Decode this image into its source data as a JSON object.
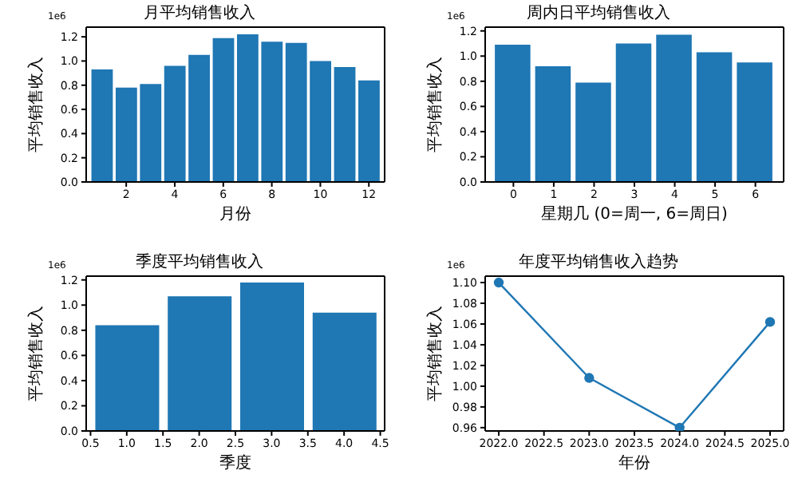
{
  "chart_data": [
    {
      "type": "bar",
      "title": "月平均销售收入",
      "xlabel": "月份",
      "ylabel": "平均销售收入",
      "annotations": [
        "1e6"
      ],
      "color": "#1f77b4",
      "x": [
        1,
        2,
        3,
        4,
        5,
        6,
        7,
        8,
        9,
        10,
        11,
        12
      ],
      "values": [
        0.93,
        0.78,
        0.81,
        0.96,
        1.05,
        1.19,
        1.22,
        1.16,
        1.15,
        1.0,
        0.95,
        0.84
      ],
      "xlim": [
        0.35,
        12.65
      ],
      "xticks": [
        2,
        4,
        6,
        8,
        10,
        12
      ],
      "ylim": [
        0,
        1.28
      ],
      "yticks": [
        {
          "value": 0,
          "label": "0.0"
        },
        0.2,
        0.4,
        0.6,
        0.8,
        {
          "value": 1,
          "label": "1.0"
        },
        1.2
      ]
    },
    {
      "type": "bar",
      "title": "周内日平均销售收入",
      "xlabel": "星期几 (0=周一, 6=周日)",
      "ylabel": "平均销售收入",
      "annotations": [
        "1e6"
      ],
      "color": "#1f77b4",
      "x": [
        0,
        1,
        2,
        3,
        4,
        5,
        6
      ],
      "values": [
        1.09,
        0.92,
        0.79,
        1.1,
        1.17,
        1.03,
        0.95
      ],
      "xlim": [
        -0.7,
        6.7
      ],
      "xticks": [
        0,
        1,
        2,
        3,
        4,
        5,
        6
      ],
      "ylim": [
        0,
        1.23
      ],
      "yticks": [
        {
          "value": 0,
          "label": "0.0"
        },
        0.2,
        0.4,
        0.6,
        0.8,
        {
          "value": 1,
          "label": "1.0"
        },
        1.2
      ]
    },
    {
      "type": "bar",
      "title": "季度平均销售收入",
      "xlabel": "季度",
      "ylabel": "平均销售收入",
      "annotations": [
        "1e6"
      ],
      "color": "#1f77b4",
      "x": [
        1,
        2,
        3,
        4
      ],
      "values": [
        0.84,
        1.07,
        1.18,
        0.94
      ],
      "xlim": [
        0.44,
        4.56
      ],
      "xticks": [
        0.5,
        {
          "value": 1,
          "label": "1.0"
        },
        1.5,
        {
          "value": 2,
          "label": "2.0"
        },
        2.5,
        {
          "value": 3,
          "label": "3.0"
        },
        3.5,
        {
          "value": 4,
          "label": "4.0"
        },
        4.5
      ],
      "ylim": [
        0,
        1.23
      ],
      "yticks": [
        {
          "value": 0,
          "label": "0.0"
        },
        0.2,
        0.4,
        0.6,
        0.8,
        {
          "value": 1,
          "label": "1.0"
        },
        1.2
      ]
    },
    {
      "type": "line",
      "title": "年度平均销售收入趋势",
      "xlabel": "年份",
      "ylabel": "平均销售收入",
      "annotations": [
        "1e6"
      ],
      "color": "#1f77b4",
      "marker": "circle",
      "line_style": "solid",
      "x": [
        2022,
        2023,
        2024,
        2025
      ],
      "values": [
        1.1,
        1.008,
        0.96,
        1.062
      ],
      "xlim": [
        2021.85,
        2025.15
      ],
      "xticks": [
        {
          "value": 2022,
          "label": "2022.0"
        },
        2022.5,
        {
          "value": 2023,
          "label": "2023.0"
        },
        2023.5,
        {
          "value": 2024,
          "label": "2024.0"
        },
        2024.5,
        {
          "value": 2025,
          "label": "2025.0"
        }
      ],
      "ylim": [
        0.9568,
        1.1062
      ],
      "yticks": [
        0.96,
        0.98,
        {
          "value": 1,
          "label": "1.00"
        },
        1.02,
        1.04,
        1.06,
        1.08,
        {
          "value": 1.1,
          "label": "1.10"
        }
      ]
    }
  ]
}
